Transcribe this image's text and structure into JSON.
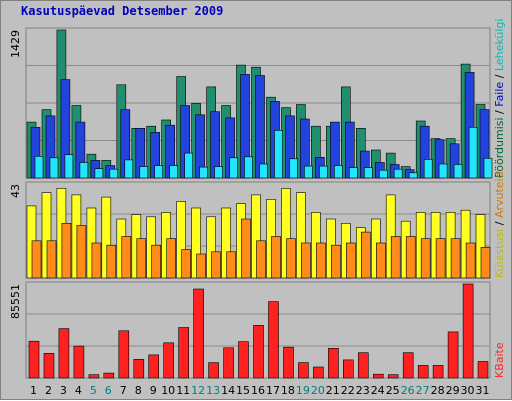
{
  "title": "Kasutuspäevad Detsember 2009",
  "chart_data": [
    {
      "type": "bar",
      "panel": "top",
      "ymax_label": "1429",
      "ylim": [
        0,
        1429
      ],
      "right_legend": [
        {
          "text": "Pöördumisi",
          "color": "#006633"
        },
        {
          "text": " / ",
          "color": "#000000"
        },
        {
          "text": "Faile",
          "color": "#0000cc"
        },
        {
          "text": " / ",
          "color": "#000000"
        },
        {
          "text": "Lehekülgi",
          "color": "#00bbbb"
        }
      ],
      "series": [
        {
          "name": "Pöördumisi",
          "color": "#1f8f6f",
          "values": [
            540,
            660,
            1429,
            700,
            230,
            170,
            900,
            480,
            500,
            560,
            980,
            720,
            880,
            700,
            1090,
            1070,
            780,
            680,
            710,
            500,
            500,
            880,
            480,
            270,
            240,
            110,
            550,
            380,
            380,
            1100,
            710
          ]
        },
        {
          "name": "Faile",
          "color": "#2244dd",
          "values": [
            490,
            600,
            950,
            540,
            170,
            120,
            660,
            480,
            440,
            510,
            700,
            610,
            640,
            580,
            1000,
            990,
            740,
            600,
            570,
            200,
            540,
            540,
            260,
            150,
            130,
            80,
            500,
            370,
            330,
            1020,
            660
          ]
        },
        {
          "name": "Lehekülgi",
          "color": "#22e5ff",
          "values": [
            210,
            195,
            225,
            150,
            90,
            85,
            175,
            110,
            120,
            120,
            240,
            105,
            110,
            195,
            205,
            135,
            460,
            185,
            115,
            115,
            120,
            100,
            100,
            75,
            85,
            50,
            180,
            135,
            130,
            490,
            190
          ]
        }
      ]
    },
    {
      "type": "bar",
      "panel": "middle",
      "ymax_label": "43",
      "ylim": [
        0,
        43
      ],
      "right_legend": [
        {
          "text": "Külastusi",
          "color": "#bbbb00"
        },
        {
          "text": " / ",
          "color": "#000000"
        },
        {
          "text": "Arvuteid",
          "color": "#cc7a00"
        }
      ],
      "series": [
        {
          "name": "Külastusi",
          "color": "#ffff22",
          "values": [
            33,
            39,
            41,
            38,
            32,
            37,
            27,
            29,
            28,
            30,
            35,
            32,
            28,
            32,
            34,
            38,
            36,
            41,
            39,
            30,
            27,
            25,
            23,
            27,
            38,
            26,
            30,
            30,
            30,
            31,
            29
          ]
        },
        {
          "name": "Arvuteid",
          "color": "#ff8c1a",
          "values": [
            17,
            17,
            25,
            24,
            16,
            15,
            19,
            18,
            15,
            18,
            13,
            11,
            12,
            12,
            27,
            17,
            19,
            18,
            16,
            16,
            15,
            16,
            21,
            16,
            19,
            19,
            18,
            18,
            18,
            16,
            14
          ]
        }
      ]
    },
    {
      "type": "bar",
      "panel": "bottom",
      "ymax_label": "85551",
      "ylim": [
        0,
        85551
      ],
      "right_legend": [
        {
          "text": "KBaite",
          "color": "#ff2222"
        }
      ],
      "series": [
        {
          "name": "KBaite",
          "color": "#ff2020",
          "values": [
            33500,
            22500,
            45000,
            29000,
            3000,
            4500,
            43000,
            17000,
            21000,
            32000,
            46000,
            81000,
            14000,
            27500,
            33000,
            48000,
            69500,
            28000,
            14000,
            10000,
            27000,
            16500,
            23000,
            3500,
            3000,
            23000,
            11500,
            11500,
            42000,
            87500,
            15000
          ]
        }
      ]
    }
  ],
  "x_labels": [
    {
      "text": "1",
      "color": "#000000"
    },
    {
      "text": "2",
      "color": "#000000"
    },
    {
      "text": "3",
      "color": "#000000"
    },
    {
      "text": "4",
      "color": "#000000"
    },
    {
      "text": "5",
      "color": "#008080"
    },
    {
      "text": "6",
      "color": "#008080"
    },
    {
      "text": "7",
      "color": "#000000"
    },
    {
      "text": "8",
      "color": "#000000"
    },
    {
      "text": "9",
      "color": "#000000"
    },
    {
      "text": "10",
      "color": "#000000"
    },
    {
      "text": "11",
      "color": "#000000"
    },
    {
      "text": "12",
      "color": "#008080"
    },
    {
      "text": "13",
      "color": "#008080"
    },
    {
      "text": "14",
      "color": "#000000"
    },
    {
      "text": "15",
      "color": "#000000"
    },
    {
      "text": "16",
      "color": "#000000"
    },
    {
      "text": "17",
      "color": "#000000"
    },
    {
      "text": "18",
      "color": "#000000"
    },
    {
      "text": "19",
      "color": "#008080"
    },
    {
      "text": "20",
      "color": "#008080"
    },
    {
      "text": "21",
      "color": "#000000"
    },
    {
      "text": "22",
      "color": "#000000"
    },
    {
      "text": "23",
      "color": "#000000"
    },
    {
      "text": "24",
      "color": "#000000"
    },
    {
      "text": "25",
      "color": "#000000"
    },
    {
      "text": "26",
      "color": "#008080"
    },
    {
      "text": "27",
      "color": "#008080"
    },
    {
      "text": "28",
      "color": "#000000"
    },
    {
      "text": "29",
      "color": "#000000"
    },
    {
      "text": "30",
      "color": "#000000"
    },
    {
      "text": "31",
      "color": "#000000"
    }
  ]
}
